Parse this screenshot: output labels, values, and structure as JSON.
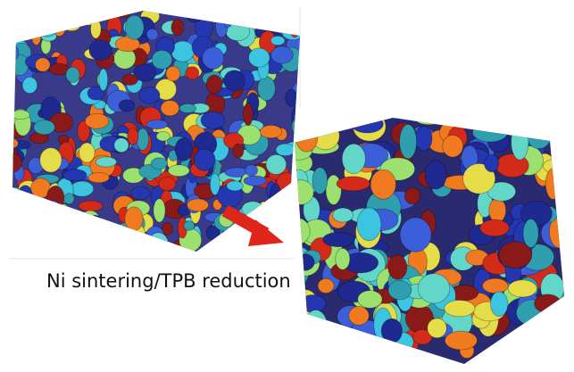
{
  "caption": "Ni sintering/TPB reduction"
}
